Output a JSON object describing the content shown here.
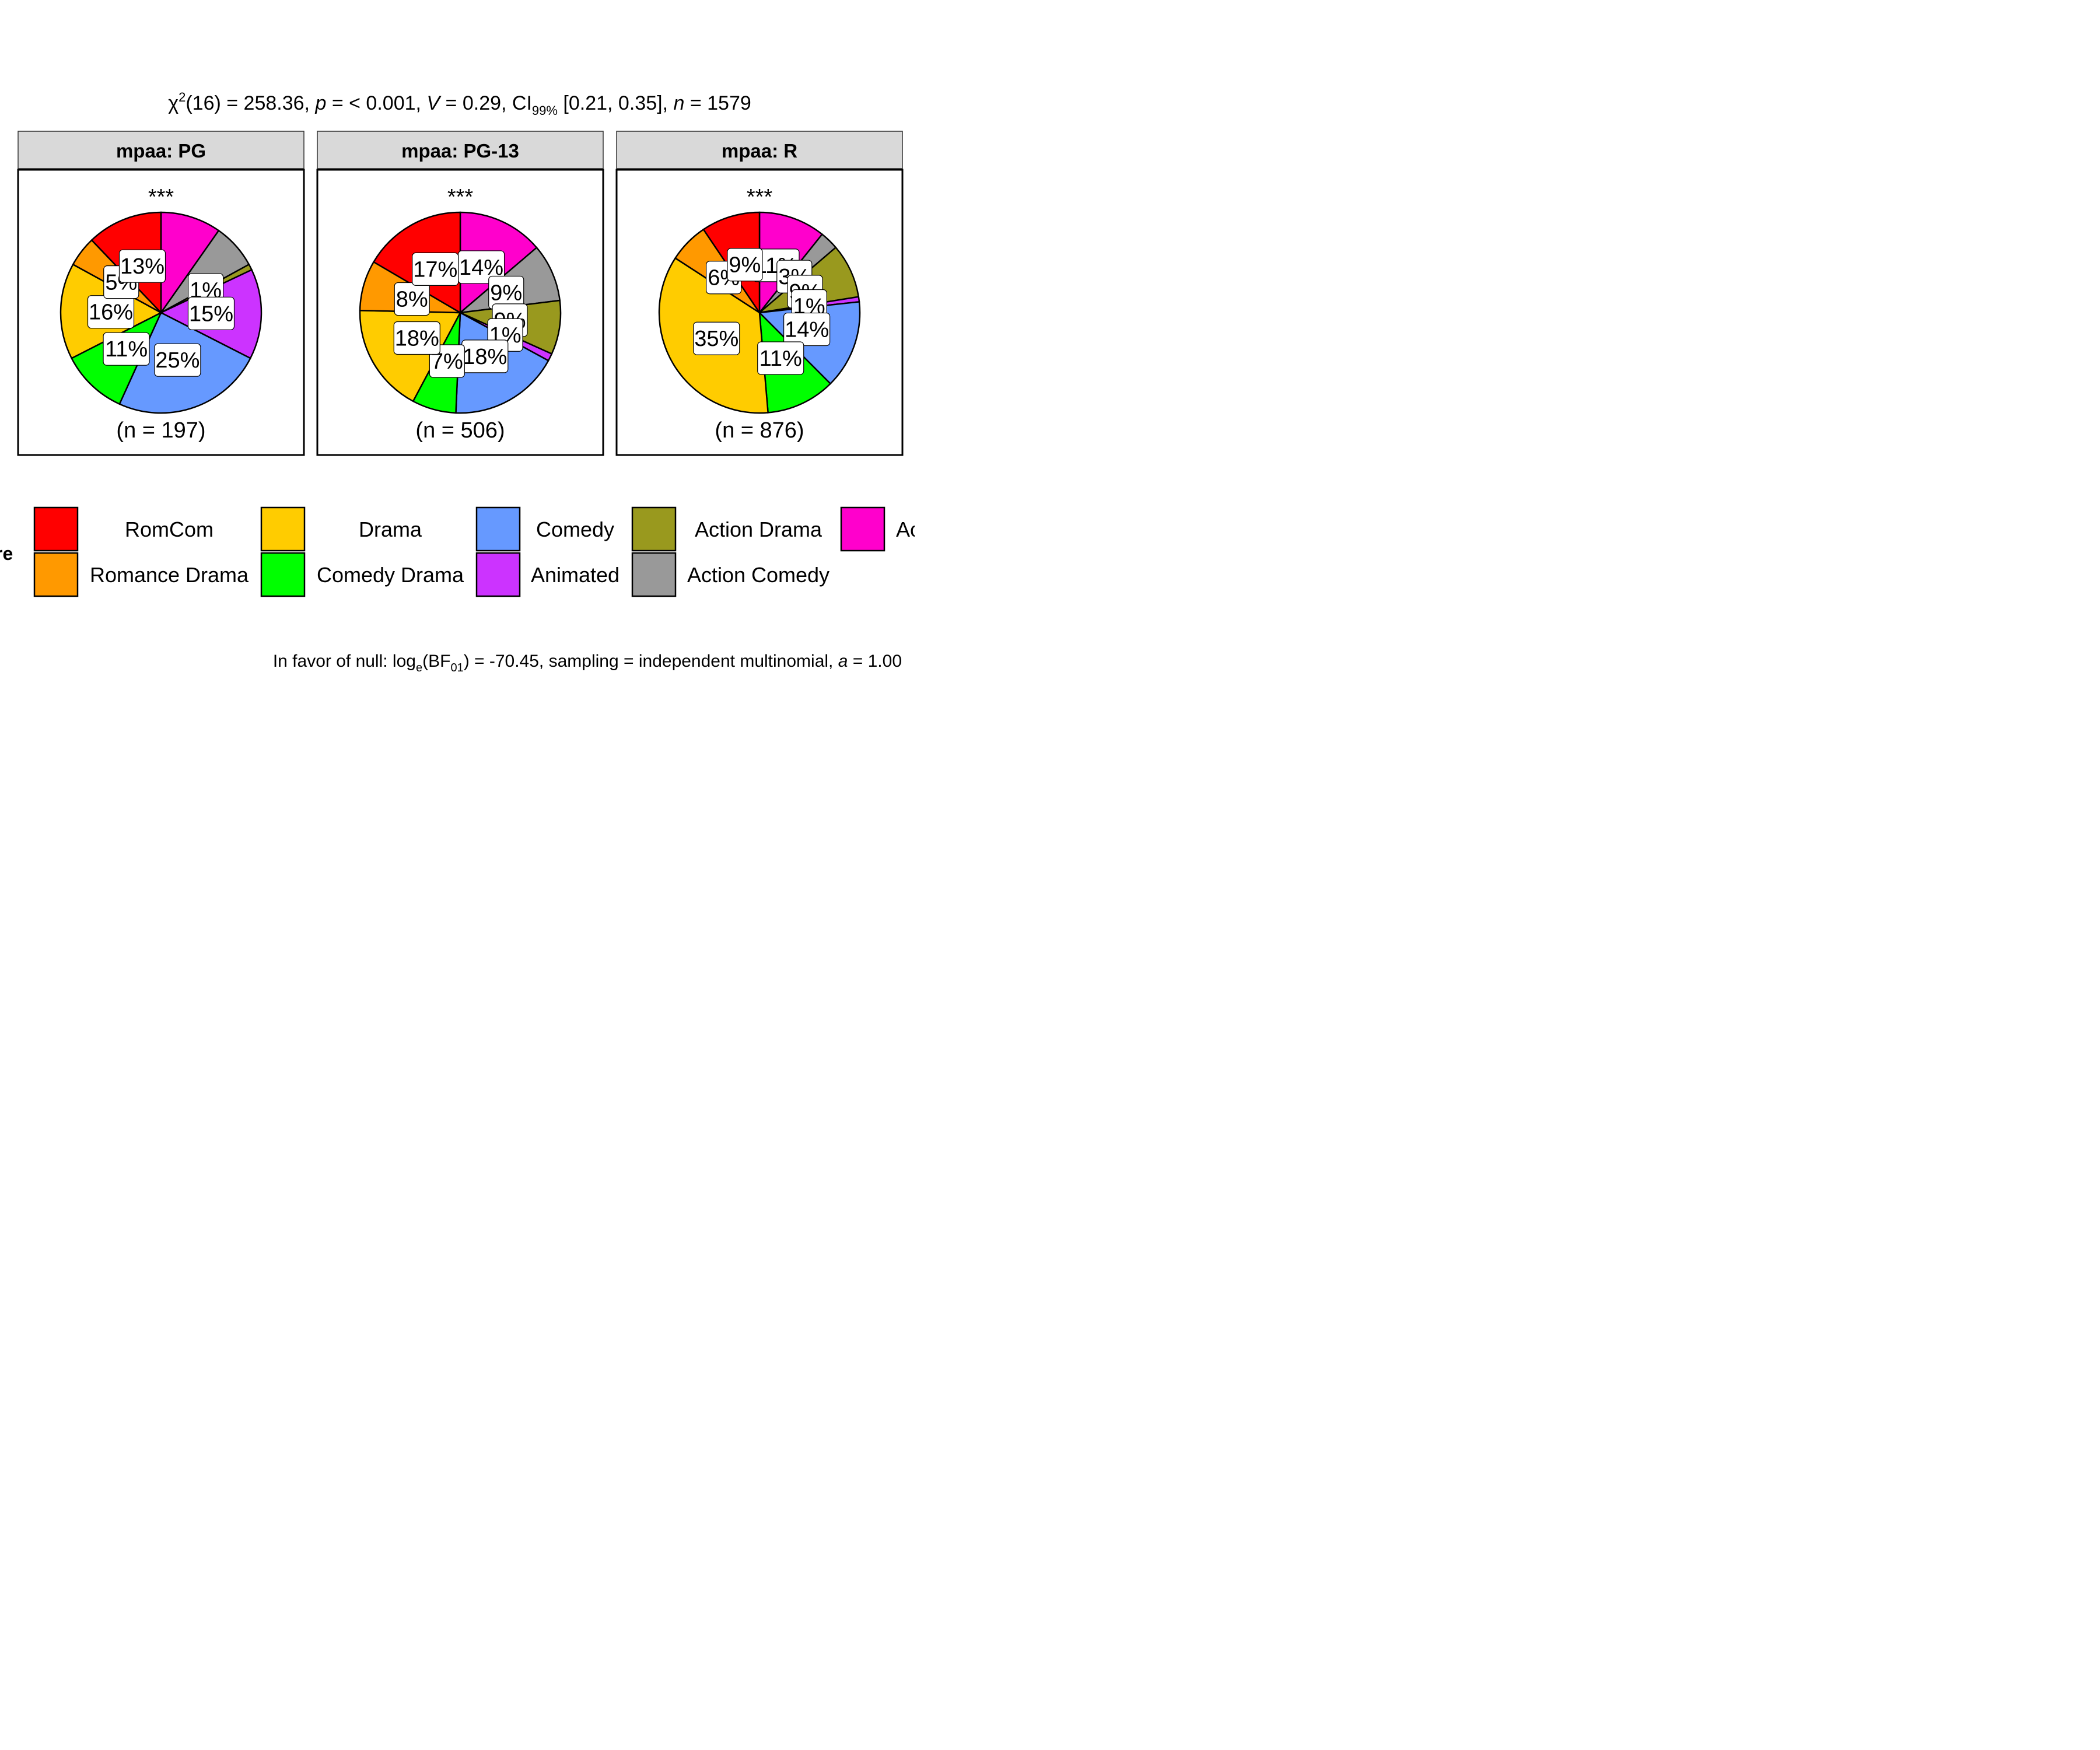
{
  "subtitle": {
    "chi": "χ",
    "sq": "2",
    "df_value": "(16) = 258.36, ",
    "p_sym": "p",
    "p_value": " = < 0.001, ",
    "v_sym": "V",
    "v_value": " = 0.29, CI",
    "ci_sub": "99%",
    "ci_value": " [0.21, 0.35], ",
    "n_sym": "n",
    "n_value": " = 1579"
  },
  "caption": {
    "prefix": "In favor of null: log",
    "e_sub": "e",
    "bf": "(BF",
    "bf_sub": "01",
    "rest": ") = -70.45, sampling = independent multinomial, ",
    "a_sym": "a",
    "a_value": " = 1.00"
  },
  "legend": {
    "title_fragment": "re",
    "last_label_fragment": "Ac"
  },
  "chart_data": {
    "type": "pie",
    "categories": [
      "RomCom",
      "Romance Drama",
      "Drama",
      "Comedy Drama",
      "Comedy",
      "Animated",
      "Action Drama",
      "Action Comedy",
      "Action"
    ],
    "colors": {
      "RomCom": "#FF0000",
      "Romance Drama": "#FF9900",
      "Drama": "#FFCC00",
      "Comedy Drama": "#00FF00",
      "Comedy": "#6699FF",
      "Animated": "#CC33FF",
      "Action Drama": "#99991E",
      "Action Comedy": "#999999",
      "Action": "#FF00CC"
    },
    "legend_order": [
      "RomCom",
      "Romance Drama",
      "Drama",
      "Comedy Drama",
      "Comedy",
      "Animated",
      "Action Drama",
      "Action Comedy",
      "Action"
    ],
    "legend_visible_labels": [
      "RomCom",
      "Romance Drama",
      "Drama",
      "Comedy Drama",
      "Comedy",
      "Animated",
      "Action Drama",
      "Action Comedy"
    ],
    "panels": [
      {
        "strip": "mpaa: PG",
        "significance": "***",
        "n_label": "(n = 197)",
        "slices": [
          {
            "category": "Action",
            "value": 10.2,
            "label": ""
          },
          {
            "category": "Action Comedy",
            "value": 7.6,
            "label": ""
          },
          {
            "category": "Action Drama",
            "value": 1.0,
            "label": "1%"
          },
          {
            "category": "Animated",
            "value": 15.2,
            "label": "15%"
          },
          {
            "category": "Comedy",
            "value": 25.4,
            "label": "25%"
          },
          {
            "category": "Comedy Drama",
            "value": 11.2,
            "label": "11%"
          },
          {
            "category": "Drama",
            "value": 16.2,
            "label": "16%"
          },
          {
            "category": "Romance Drama",
            "value": 5.1,
            "label": "5%"
          },
          {
            "category": "RomCom",
            "value": 12.7,
            "label": "13%"
          }
        ]
      },
      {
        "strip": "mpaa: PG-13",
        "significance": "***",
        "n_label": "(n = 506)",
        "slices": [
          {
            "category": "Action",
            "value": 13.8,
            "label": "14%"
          },
          {
            "category": "Action Comedy",
            "value": 9.3,
            "label": "9%"
          },
          {
            "category": "Action Drama",
            "value": 8.7,
            "label": "9%"
          },
          {
            "category": "Animated",
            "value": 1.2,
            "label": "1%"
          },
          {
            "category": "Comedy",
            "value": 17.8,
            "label": "18%"
          },
          {
            "category": "Comedy Drama",
            "value": 7.1,
            "label": "7%"
          },
          {
            "category": "Drama",
            "value": 17.6,
            "label": "18%"
          },
          {
            "category": "Romance Drama",
            "value": 8.1,
            "label": "8%"
          },
          {
            "category": "RomCom",
            "value": 16.6,
            "label": "17%"
          }
        ]
      },
      {
        "strip": "mpaa: R",
        "significance": "***",
        "n_label": "(n = 876)",
        "slices": [
          {
            "category": "Action",
            "value": 10.7,
            "label": "11%"
          },
          {
            "category": "Action Comedy",
            "value": 3.0,
            "label": "3%"
          },
          {
            "category": "Action Drama",
            "value": 8.7,
            "label": "9%"
          },
          {
            "category": "Animated",
            "value": 0.8,
            "label": "1%"
          },
          {
            "category": "Comedy",
            "value": 14.2,
            "label": "14%"
          },
          {
            "category": "Comedy Drama",
            "value": 11.1,
            "label": "11%"
          },
          {
            "category": "Drama",
            "value": 35.4,
            "label": "35%"
          },
          {
            "category": "Romance Drama",
            "value": 6.4,
            "label": "6%"
          },
          {
            "category": "RomCom",
            "value": 9.4,
            "label": "9%"
          }
        ]
      }
    ]
  }
}
